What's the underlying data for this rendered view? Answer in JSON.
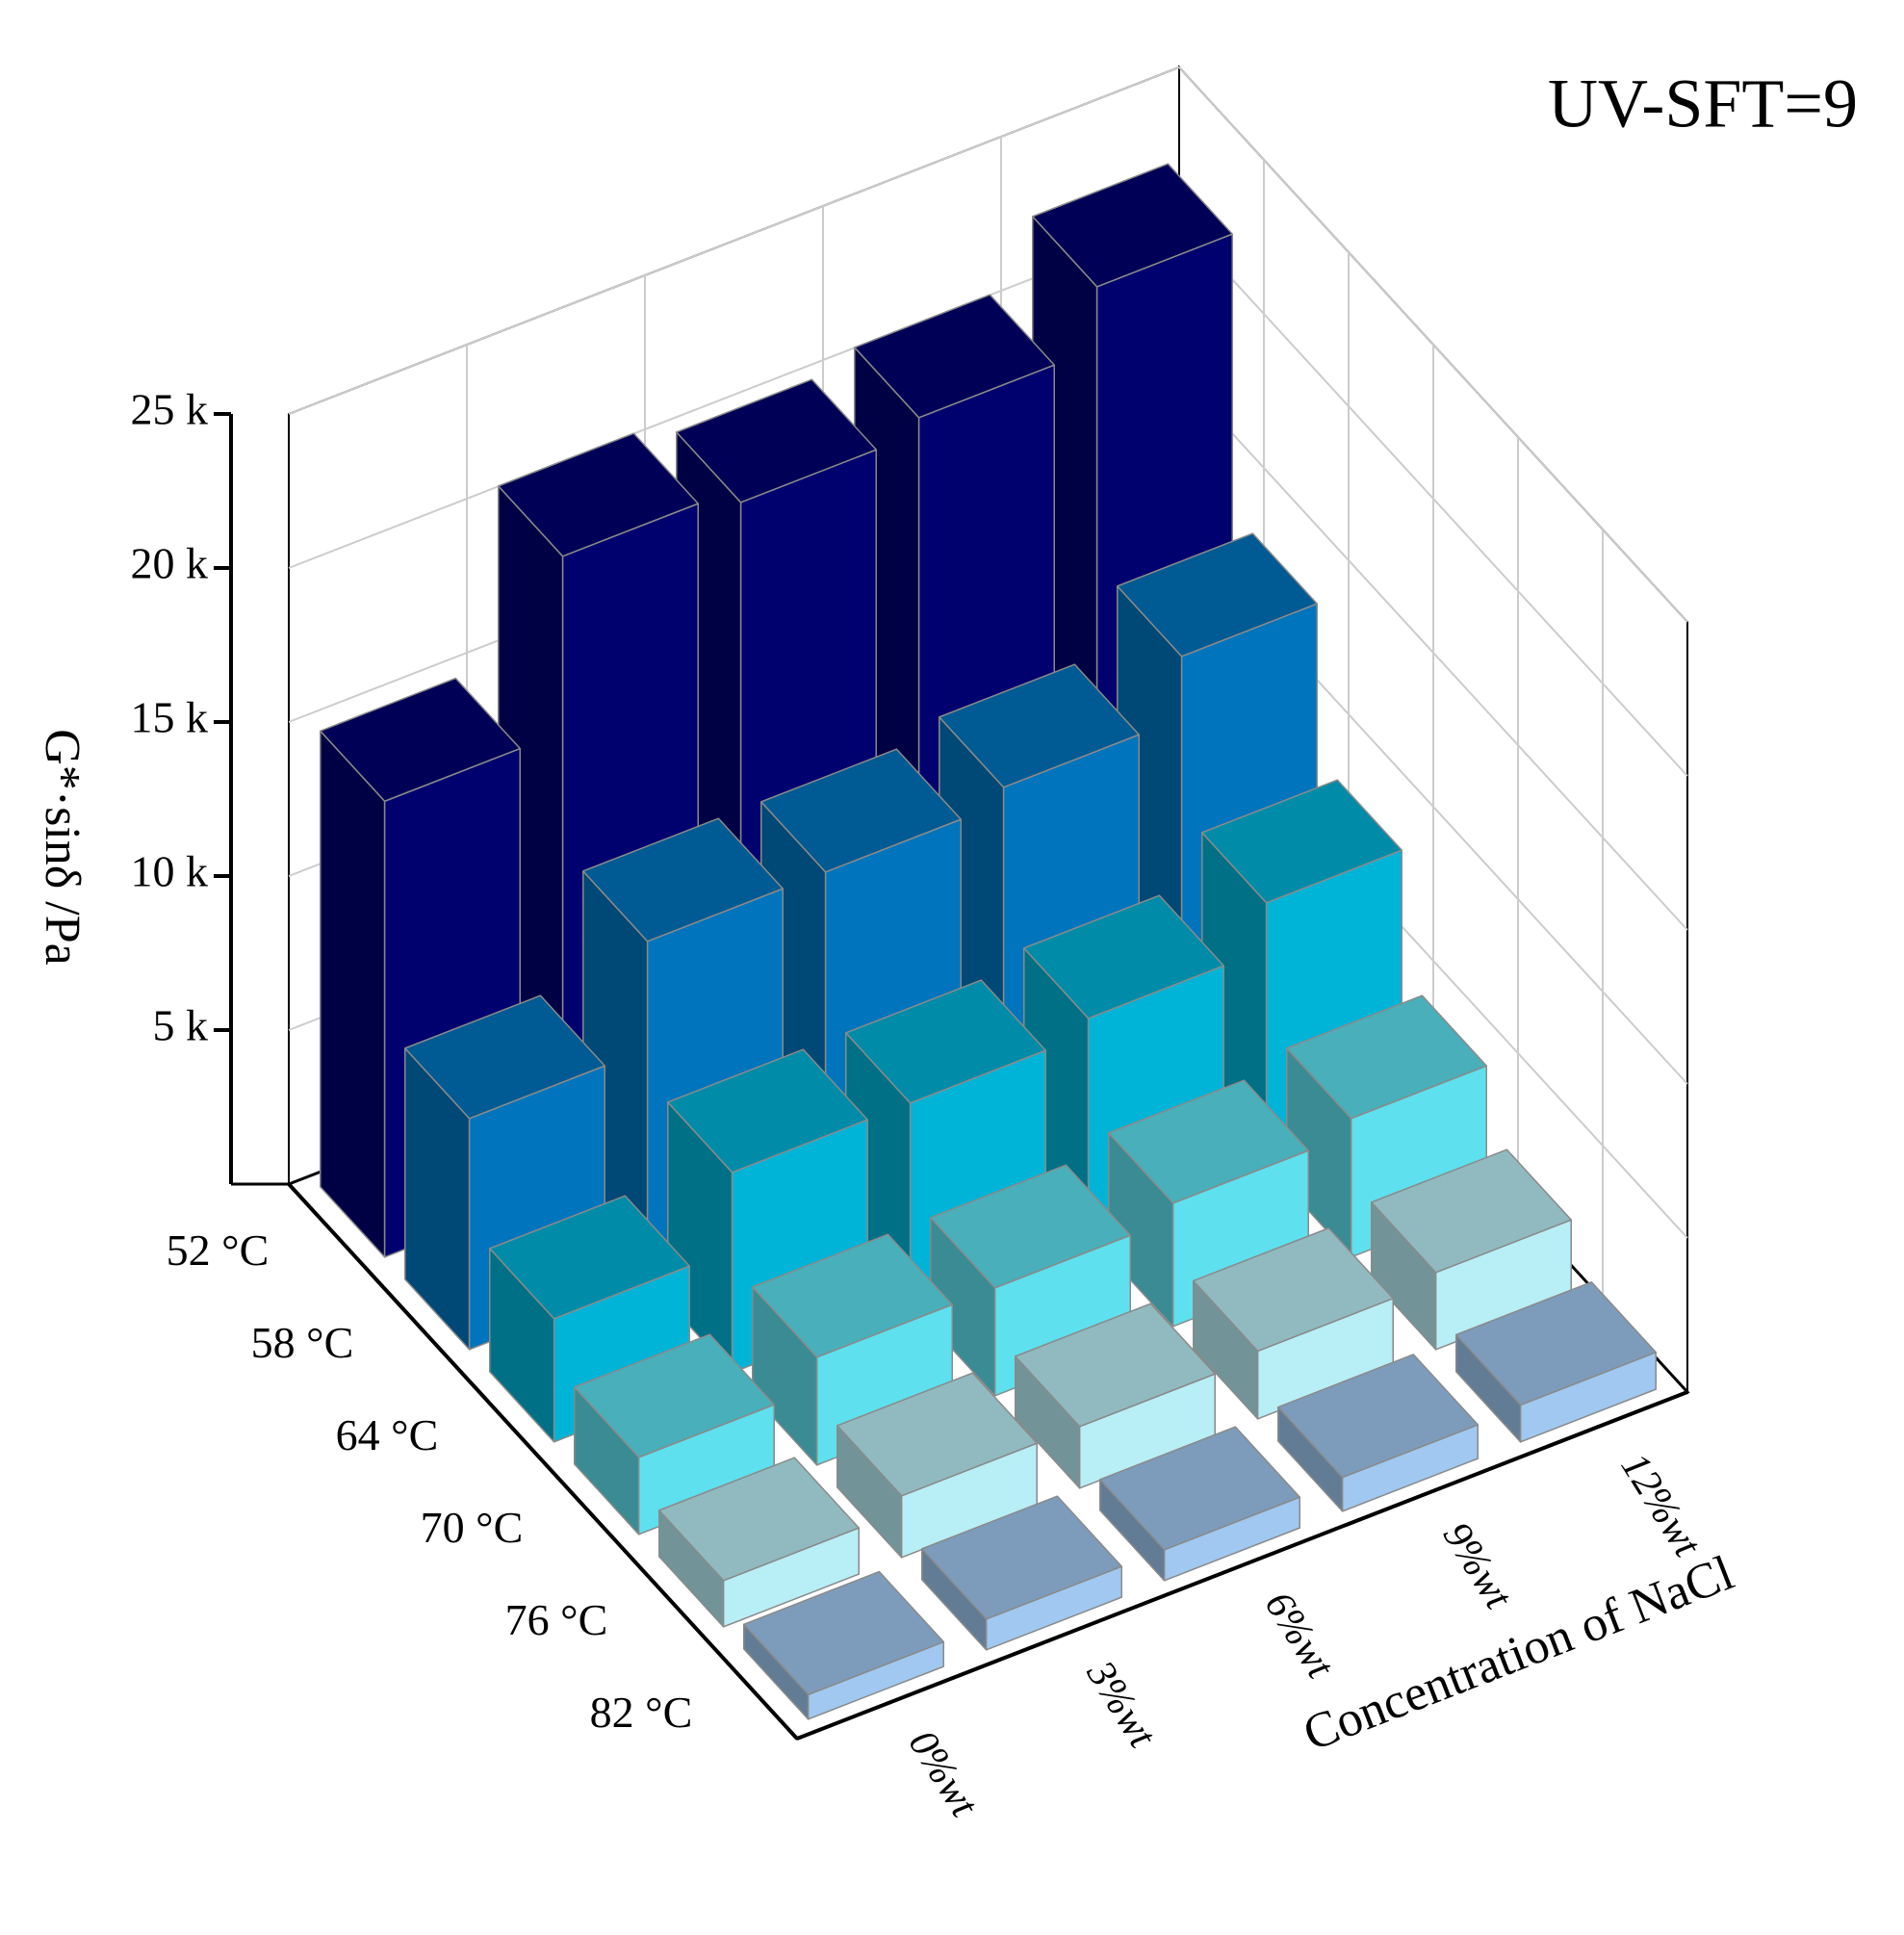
{
  "chart_data": {
    "type": "bar3d",
    "annotation": "UV-SFT=9",
    "y_label": "G*·sinδ /Pa",
    "x_label": "Concentration of NaCl",
    "categories": [
      "0%wt",
      "3%wt",
      "6%wt",
      "9%wt",
      "12%wt"
    ],
    "series": [
      {
        "name": "52 °C",
        "color": "#00006e",
        "values": [
          14800,
          20500,
          20000,
          20500,
          22500
        ]
      },
      {
        "name": "58 °C",
        "color": "#0074bc",
        "values": [
          7500,
          11000,
          11000,
          11500,
          13500
        ]
      },
      {
        "name": "64 °C",
        "color": "#00b4d8",
        "values": [
          4000,
          6500,
          6500,
          7000,
          8500
        ]
      },
      {
        "name": "70 °C",
        "color": "#5ee0ee",
        "values": [
          2500,
          3500,
          3500,
          4000,
          4500
        ]
      },
      {
        "name": "76 °C",
        "color": "#b8eef6",
        "values": [
          1500,
          2000,
          2000,
          2200,
          2500
        ]
      },
      {
        "name": "82 °C",
        "color": "#a0c8f0",
        "values": [
          800,
          1000,
          1000,
          1100,
          1200
        ]
      }
    ],
    "ylim": [
      0,
      25000
    ],
    "yticks": [
      {
        "value": 5000,
        "label": "5 k"
      },
      {
        "value": 10000,
        "label": "10 k"
      },
      {
        "value": 15000,
        "label": "15 k"
      },
      {
        "value": 20000,
        "label": "20 k"
      },
      {
        "value": 25000,
        "label": "25 k"
      }
    ],
    "grid": true
  }
}
